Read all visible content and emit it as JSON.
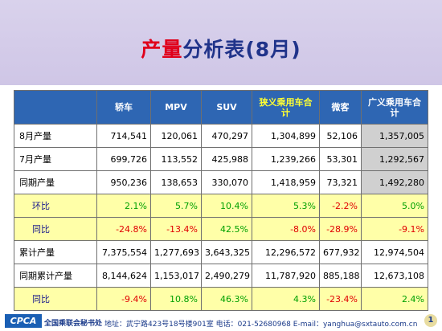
{
  "title": {
    "highlight": "产量",
    "rest": "分析表(8月)"
  },
  "table": {
    "columns": [
      "轿车",
      "MPV",
      "SUV",
      "狭义乘用车合计",
      "微客",
      "广义乘用车合计"
    ],
    "rows": [
      {
        "label": "8月产量",
        "type": "data",
        "cells": [
          "714,541",
          "120,061",
          "470,297",
          "1,304,899",
          "52,106",
          "1,357,005"
        ]
      },
      {
        "label": "7月产量",
        "type": "data",
        "cells": [
          "699,726",
          "113,552",
          "425,988",
          "1,239,266",
          "53,301",
          "1,292,567"
        ]
      },
      {
        "label": "同期产量",
        "type": "data",
        "cells": [
          "950,236",
          "138,653",
          "330,070",
          "1,418,959",
          "73,321",
          "1,492,280"
        ]
      },
      {
        "label": "环比",
        "type": "ratio",
        "cells": [
          "2.1%",
          "5.7%",
          "10.4%",
          "5.3%",
          "-2.2%",
          "5.0%"
        ]
      },
      {
        "label": "同比",
        "type": "ratio",
        "cells": [
          "-24.8%",
          "-13.4%",
          "42.5%",
          "-8.0%",
          "-28.9%",
          "-9.1%"
        ]
      },
      {
        "label": "累计产量",
        "type": "data",
        "cells": [
          "7,375,554",
          "1,277,693",
          "3,643,325",
          "12,296,572",
          "677,932",
          "12,974,504"
        ]
      },
      {
        "label": "同期累计产量",
        "type": "data",
        "cells": [
          "8,144,624",
          "1,153,017",
          "2,490,279",
          "11,787,920",
          "885,188",
          "12,673,108"
        ]
      },
      {
        "label": "同比",
        "type": "ratio",
        "cells": [
          "-9.4%",
          "10.8%",
          "46.3%",
          "4.3%",
          "-23.4%",
          "2.4%"
        ]
      }
    ]
  },
  "footer": {
    "logo": "CPCA",
    "org": "全国乘联会秘书处",
    "address": "地址：武宁路423号18号楼901室  电话：021-52680968   E-mail：yanghua@sxtauto.com.cn",
    "page": "1"
  },
  "colors": {
    "header_bg": "#2e66b3",
    "ratio_bg": "#ffffa8",
    "positive": "#00a000",
    "negative": "#e00000",
    "title_accent": "#e0001b"
  }
}
